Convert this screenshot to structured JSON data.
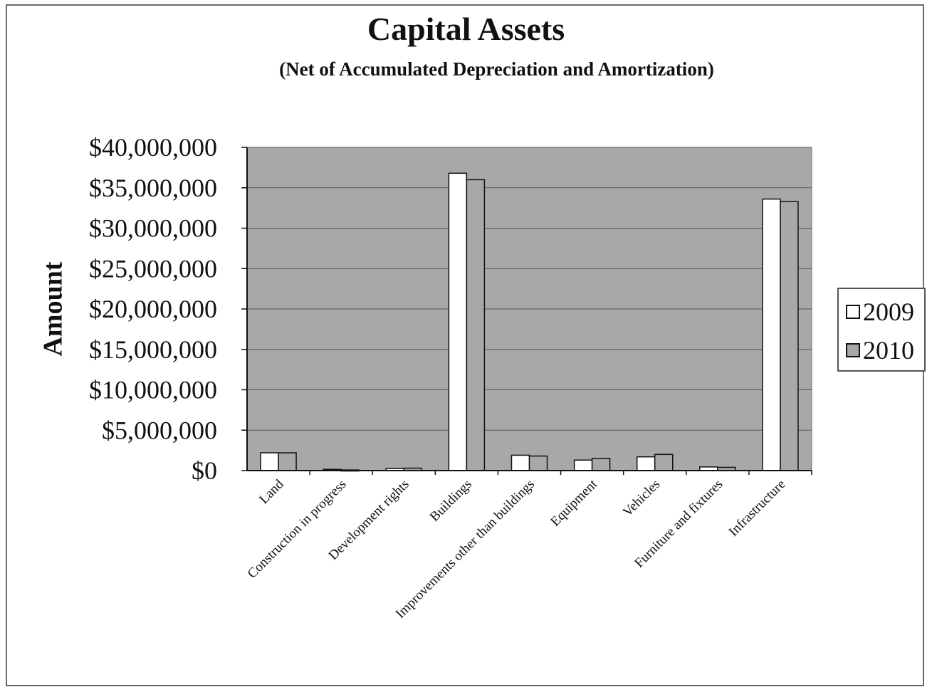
{
  "chart_data": {
    "type": "bar",
    "title": "Capital Assets",
    "subtitle": "(Net of Accumulated Depreciation and Amortization)",
    "ylabel": "Amount",
    "xlabel": "",
    "ylim": [
      0,
      40000000
    ],
    "yticks": [
      0,
      5000000,
      10000000,
      15000000,
      20000000,
      25000000,
      30000000,
      35000000,
      40000000
    ],
    "ytick_labels": [
      "$0",
      "$5,000,000",
      "$10,000,000",
      "$15,000,000",
      "$20,000,000",
      "$25,000,000",
      "$30,000,000",
      "$35,000,000",
      "$40,000,000"
    ],
    "categories": [
      "Land",
      "Construction in progress",
      "Development rights",
      "Buildings",
      "Improvements other than buildings",
      "Equipment",
      "Vehicles",
      "Furniture and fixtures",
      "Infrastructure"
    ],
    "series": [
      {
        "name": "2009",
        "color": "#ffffff",
        "values": [
          2200000,
          150000,
          250000,
          36800000,
          1900000,
          1300000,
          1700000,
          450000,
          33600000
        ]
      },
      {
        "name": "2010",
        "color": "#a8a8a8",
        "values": [
          2200000,
          80000,
          300000,
          36000000,
          1800000,
          1500000,
          2000000,
          400000,
          33300000
        ]
      }
    ],
    "grid": true,
    "legend_position": "right",
    "plot_background": "#a8a8a8"
  }
}
